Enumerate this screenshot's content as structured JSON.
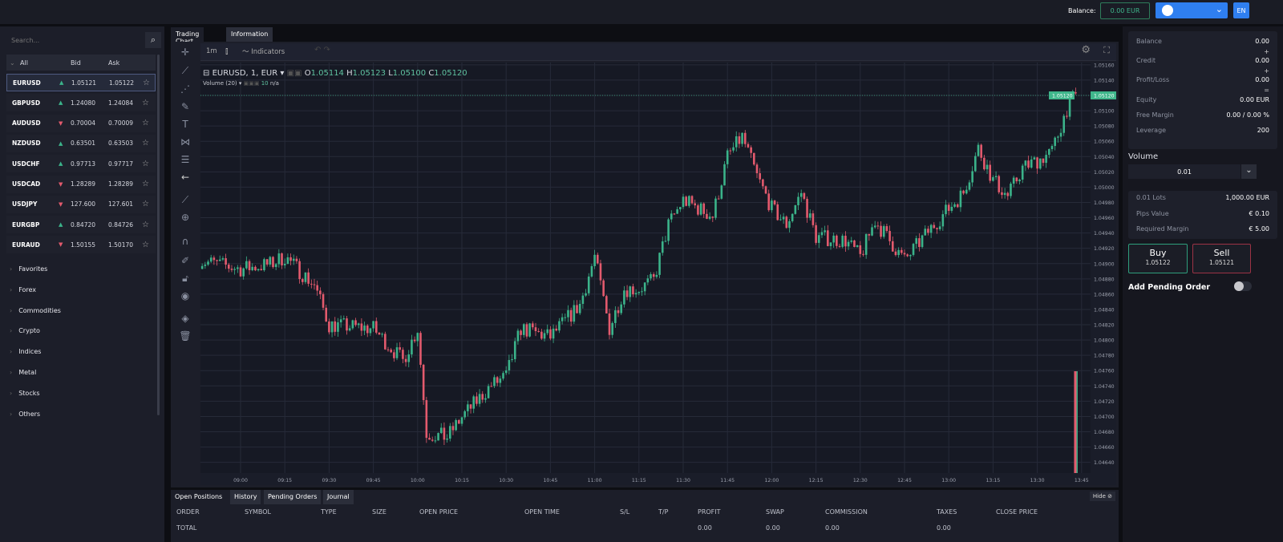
{
  "topbar": {
    "balance_label": "Balance:",
    "balance_value": "0.00 EUR",
    "language": "EN"
  },
  "sidebar": {
    "search_placeholder": "Search...",
    "header": {
      "filter": "All",
      "bid": "Bid",
      "ask": "Ask"
    },
    "instruments": [
      {
        "symbol": "EURUSD",
        "dir": "up",
        "bid": "1.05121",
        "ask": "1.05122",
        "selected": true
      },
      {
        "symbol": "GBPUSD",
        "dir": "up",
        "bid": "1.24080",
        "ask": "1.24084"
      },
      {
        "symbol": "AUDUSD",
        "dir": "down",
        "bid": "0.70004",
        "ask": "0.70009"
      },
      {
        "symbol": "NZDUSD",
        "dir": "up",
        "bid": "0.63501",
        "ask": "0.63503"
      },
      {
        "symbol": "USDCHF",
        "dir": "up",
        "bid": "0.97713",
        "ask": "0.97717"
      },
      {
        "symbol": "USDCAD",
        "dir": "down",
        "bid": "1.28289",
        "ask": "1.28289"
      },
      {
        "symbol": "USDJPY",
        "dir": "down",
        "bid": "127.600",
        "ask": "127.601"
      },
      {
        "symbol": "EURGBP",
        "dir": "up",
        "bid": "0.84720",
        "ask": "0.84726"
      },
      {
        "symbol": "EURAUD",
        "dir": "down",
        "bid": "1.50155",
        "ask": "1.50170"
      }
    ],
    "categories": [
      "Favorites",
      "Forex",
      "Commodities",
      "Crypto",
      "Indices",
      "Metal",
      "Stocks",
      "Others"
    ]
  },
  "chart_tabs": [
    "Trading Chart",
    "Information"
  ],
  "chart_toolbar": {
    "interval": "1m",
    "indicators": "Indicators"
  },
  "legend": {
    "title": "EURUSD, 1, EUR",
    "o": "O",
    "o_val": "1.05114",
    "h": "H",
    "h_val": "1.05123",
    "l": "L",
    "l_val": "1.05100",
    "c": "C",
    "c_val": "1.05120",
    "volume_label": "Volume (20)",
    "volume_value": "10",
    "volume_ma": "n/a"
  },
  "colors": {
    "up": "#3bb38a",
    "down": "#e35a6d",
    "accent": "#2f7ff0",
    "price_line": "#3fb68b"
  },
  "chart_data": {
    "type": "candlestick",
    "symbol": "EURUSD",
    "interval": "1m",
    "ylim": [
      1.04626,
      1.05163
    ],
    "y_ticks": [
      "1.04640",
      "1.04660",
      "1.04680",
      "1.04700",
      "1.04720",
      "1.04740",
      "1.04760",
      "1.04780",
      "1.04800",
      "1.04820",
      "1.04840",
      "1.04860",
      "1.04880",
      "1.04900",
      "1.04920",
      "1.04940",
      "1.04960",
      "1.04980",
      "1.05000",
      "1.05020",
      "1.05040",
      "1.05060",
      "1.05080",
      "1.05100",
      "1.05120",
      "1.05140",
      "1.05160"
    ],
    "x_ticks": [
      "09:00",
      "09:15",
      "09:30",
      "09:45",
      "10:00",
      "10:15",
      "10:30",
      "10:45",
      "11:00",
      "11:15",
      "11:30",
      "11:45",
      "12:00",
      "12:15",
      "12:30",
      "12:45",
      "13:00",
      "13:15",
      "13:30",
      "13:45"
    ],
    "current_price": "1.05120",
    "approx_close_path": [
      [
        "08:46",
        1.04904
      ],
      [
        "09:00",
        1.04893
      ],
      [
        "09:10",
        1.04899
      ],
      [
        "09:15",
        1.04909
      ],
      [
        "09:25",
        1.04872
      ],
      [
        "09:30",
        1.0482
      ],
      [
        "09:45",
        1.04815
      ],
      [
        "09:55",
        1.04773
      ],
      [
        "10:00",
        1.04815
      ],
      [
        "10:03",
        1.04678
      ],
      [
        "10:10",
        1.04673
      ],
      [
        "10:15",
        1.04699
      ],
      [
        "10:25",
        1.04741
      ],
      [
        "10:30",
        1.04752
      ],
      [
        "10:35",
        1.04815
      ],
      [
        "10:45",
        1.04804
      ],
      [
        "10:55",
        1.04846
      ],
      [
        "11:00",
        1.04909
      ],
      [
        "11:05",
        1.04815
      ],
      [
        "11:10",
        1.04867
      ],
      [
        "11:15",
        1.04867
      ],
      [
        "11:20",
        1.04878
      ],
      [
        "11:25",
        1.04951
      ],
      [
        "11:30",
        1.04983
      ],
      [
        "11:40",
        1.04962
      ],
      [
        "11:45",
        1.0504
      ],
      [
        "11:50",
        1.05066
      ],
      [
        "11:55",
        1.05014
      ],
      [
        "12:00",
        1.04972
      ],
      [
        "12:05",
        1.04951
      ],
      [
        "12:10",
        1.04993
      ],
      [
        "12:15",
        1.04935
      ],
      [
        "12:25",
        1.0493
      ],
      [
        "12:30",
        1.04909
      ],
      [
        "12:35",
        1.04956
      ],
      [
        "12:40",
        1.0493
      ],
      [
        "12:45",
        1.04904
      ],
      [
        "12:55",
        1.04951
      ],
      [
        "13:05",
        1.04993
      ],
      [
        "13:10",
        1.05051
      ],
      [
        "13:15",
        1.05009
      ],
      [
        "13:20",
        1.04988
      ],
      [
        "13:25",
        1.05025
      ],
      [
        "13:30",
        1.05035
      ],
      [
        "13:35",
        1.05046
      ],
      [
        "13:40",
        1.05103
      ],
      [
        "13:43",
        1.0512
      ]
    ]
  },
  "bottom": {
    "tabs": [
      "Open Positions",
      "History",
      "Pending Orders",
      "Journal"
    ],
    "hide": "Hide",
    "columns": [
      "ORDER",
      "SYMBOL",
      "TYPE",
      "SIZE",
      "OPEN PRICE",
      "OPEN TIME",
      "S/L",
      "T/P",
      "PROFIT",
      "SWAP",
      "COMMISSION",
      "TAXES",
      "CLOSE PRICE"
    ],
    "total_label": "TOTAL",
    "totals": {
      "profit": "0.00",
      "swap": "0.00",
      "commission": "0.00",
      "taxes": "0.00"
    }
  },
  "account": {
    "rows": [
      {
        "label": "Balance",
        "value": "0.00",
        "op": "+"
      },
      {
        "label": "Credit",
        "value": "0.00",
        "op": "+"
      },
      {
        "label": "Profit/Loss",
        "value": "0.00",
        "op": "="
      },
      {
        "label": "Equity",
        "value": "0.00 EUR"
      },
      {
        "label": "Free Margin",
        "value": "0.00 / 0.00 %"
      },
      {
        "label": "Leverage",
        "value": "200"
      }
    ],
    "volume_label": "Volume",
    "volume_value": "0.01",
    "info": [
      {
        "label": "0.01 Lots",
        "value": "1,000.00 EUR"
      },
      {
        "label": "Pips Value",
        "value": "€ 0.10"
      },
      {
        "label": "Required Margin",
        "value": "€ 5.00"
      }
    ],
    "buy_label": "Buy",
    "buy_price": "1.05122",
    "sell_label": "Sell",
    "sell_price": "1.05121",
    "pending_label": "Add Pending Order",
    "pending_enabled": false
  }
}
